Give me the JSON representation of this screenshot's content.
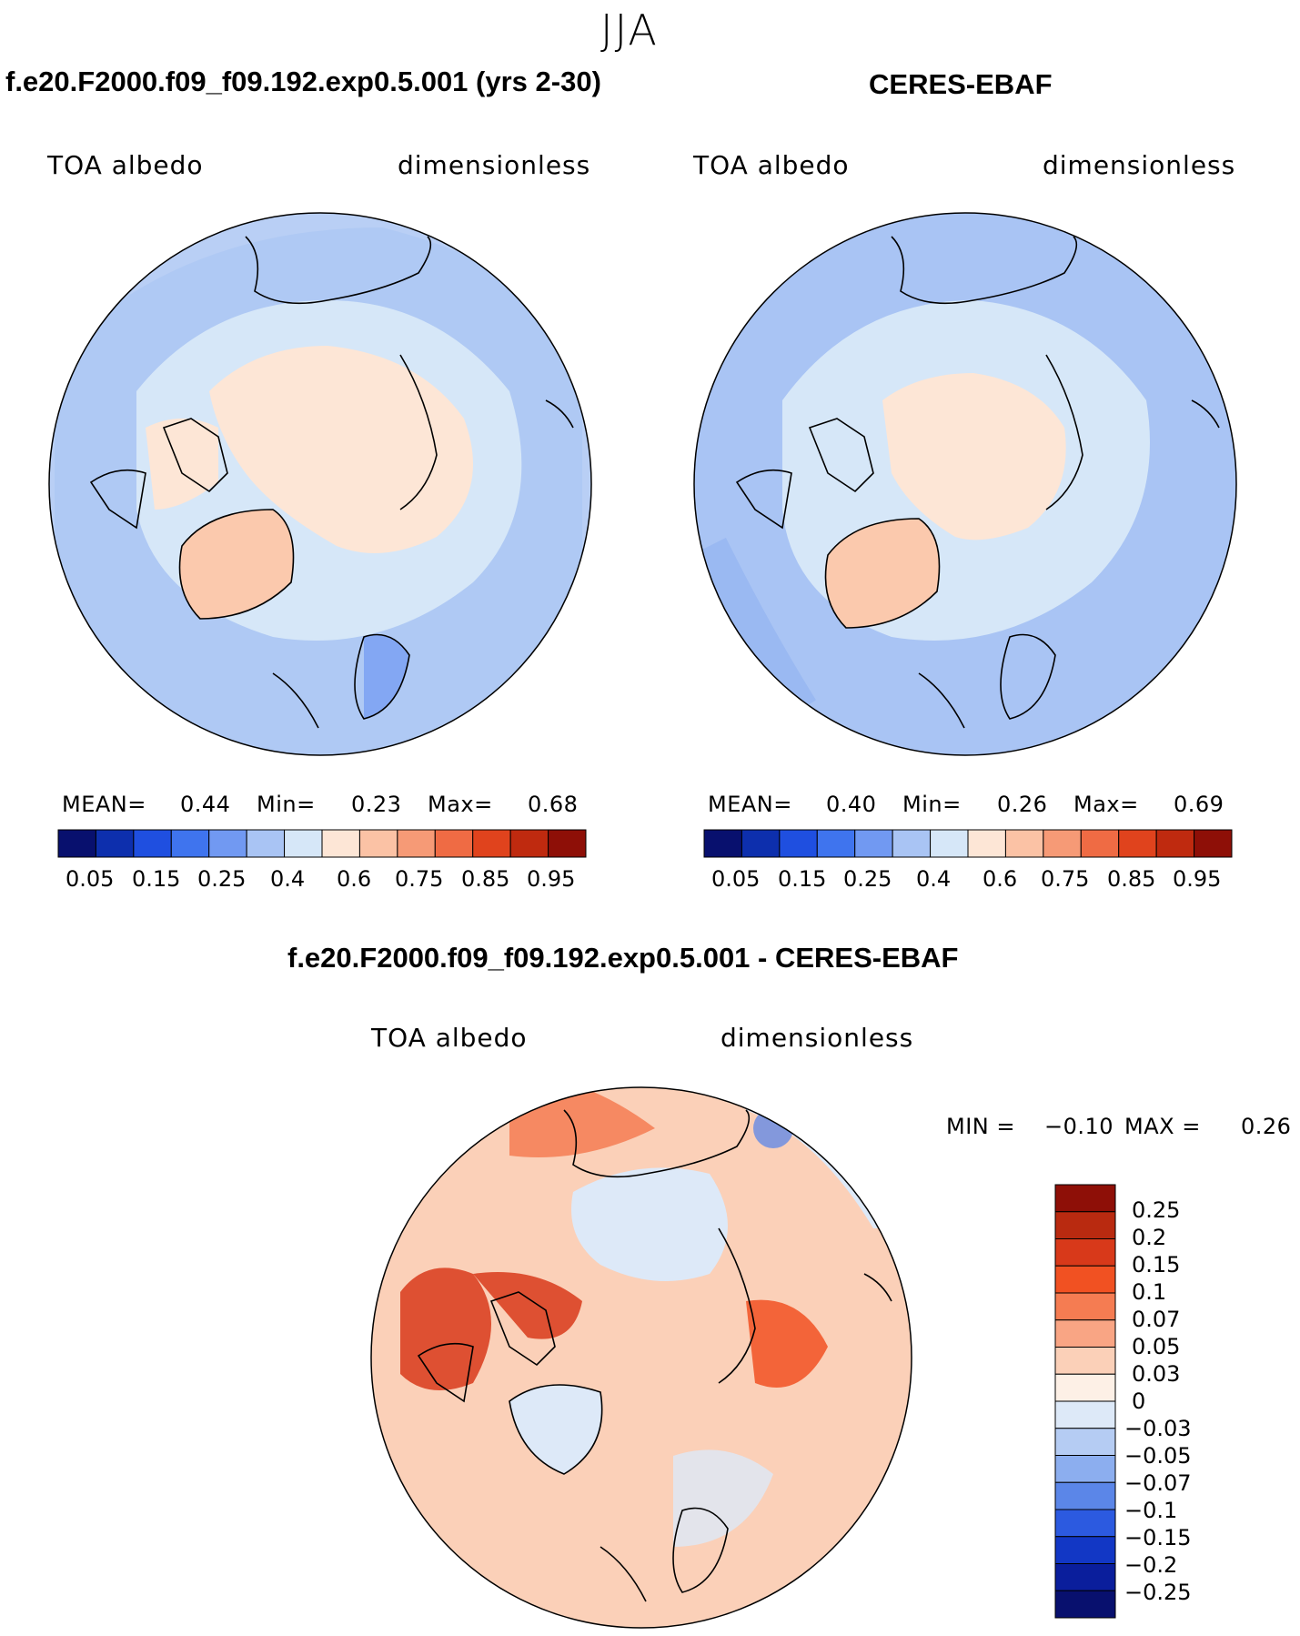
{
  "season": "JJA",
  "colors": {
    "scale": [
      "#08106e",
      "#0d2fad",
      "#1f4fe0",
      "#3f74ee",
      "#7199f2",
      "#a9c4f4",
      "#d6e7f8",
      "#fde6d6",
      "#fbc2a5",
      "#f69a76",
      "#ef6b44",
      "#e0431d",
      "#bf2a0f",
      "#8e0f07"
    ],
    "diff_scale": [
      "#8e0f07",
      "#b92a10",
      "#d8391a",
      "#f15122",
      "#f57c52",
      "#f9a584",
      "#fbd0b8",
      "#fdf0e6",
      "#dde9f8",
      "#b5ccf3",
      "#8caeef",
      "#5b86e8",
      "#2c5ae0",
      "#1237c5",
      "#0a1e9c",
      "#08106e"
    ],
    "coastline": "#000000",
    "ocean_low": "#b9cff5",
    "ocean_mid": "#d6e7f8",
    "ice": "#fde6d6",
    "greenland": "#fbc9ad"
  },
  "panels": [
    {
      "title": "f.e20.F2000.f09_f09.192.exp0.5.001 (yrs 2-30)",
      "left_label": "TOA albedo",
      "right_label": "dimensionless",
      "stats": {
        "mean_label": "MEAN=",
        "mean": "0.44",
        "min_label": "Min=",
        "min": "0.23",
        "max_label": "Max=",
        "max": "0.68"
      },
      "colorbar_ticks": [
        "0.05",
        "0.15",
        "0.25",
        "0.4",
        "0.6",
        "0.75",
        "0.85",
        "0.95"
      ]
    },
    {
      "title": "CERES-EBAF",
      "left_label": "TOA albedo",
      "right_label": "dimensionless",
      "stats": {
        "mean_label": "MEAN=",
        "mean": "0.40",
        "min_label": "Min=",
        "min": "0.26",
        "max_label": "Max=",
        "max": "0.69"
      },
      "colorbar_ticks": [
        "0.05",
        "0.15",
        "0.25",
        "0.4",
        "0.6",
        "0.75",
        "0.85",
        "0.95"
      ]
    }
  ],
  "difference": {
    "title": "f.e20.F2000.f09_f09.192.exp0.5.001 - CERES-EBAF",
    "left_label": "TOA albedo",
    "right_label": "dimensionless",
    "min_label": "MIN =",
    "min": "−0.10",
    "max_label": "MAX =",
    "max": "0.26",
    "colorbar_ticks": [
      "0.25",
      "0.2",
      "0.15",
      "0.1",
      "0.07",
      "0.05",
      "0.03",
      "0",
      "−0.03",
      "−0.05",
      "−0.07",
      "−0.1",
      "−0.15",
      "−0.2",
      "−0.25"
    ]
  }
}
